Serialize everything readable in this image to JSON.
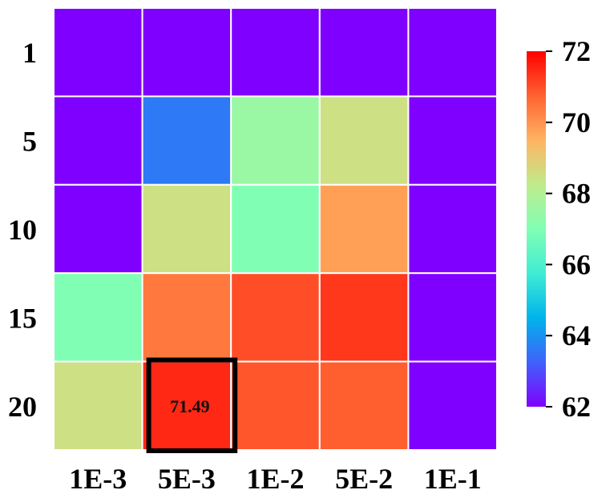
{
  "chart_data": {
    "type": "heatmap",
    "title": "",
    "xlabel": "",
    "ylabel": "",
    "x_categories": [
      "1E-3",
      "5E-3",
      "1E-2",
      "5E-2",
      "1E-1"
    ],
    "y_categories": [
      "1",
      "5",
      "10",
      "15",
      "20"
    ],
    "values": [
      [
        62.0,
        62.0,
        62.0,
        62.0,
        62.0
      ],
      [
        62.0,
        63.6,
        67.5,
        68.5,
        62.0
      ],
      [
        62.0,
        68.5,
        67.0,
        69.8,
        62.0
      ],
      [
        67.0,
        70.4,
        71.0,
        71.3,
        62.0
      ],
      [
        68.5,
        71.49,
        70.9,
        70.8,
        62.0
      ]
    ],
    "annotations": [
      {
        "row": 4,
        "col": 1,
        "text": "71.49",
        "highlighted": true
      }
    ],
    "colorbar": {
      "min": 62,
      "max": 72,
      "ticks": [
        "62",
        "64",
        "66",
        "68",
        "70",
        "72"
      ],
      "colormap": "rainbow"
    },
    "grid_line_color": "#ffffff",
    "highlight_color": "#000000"
  }
}
